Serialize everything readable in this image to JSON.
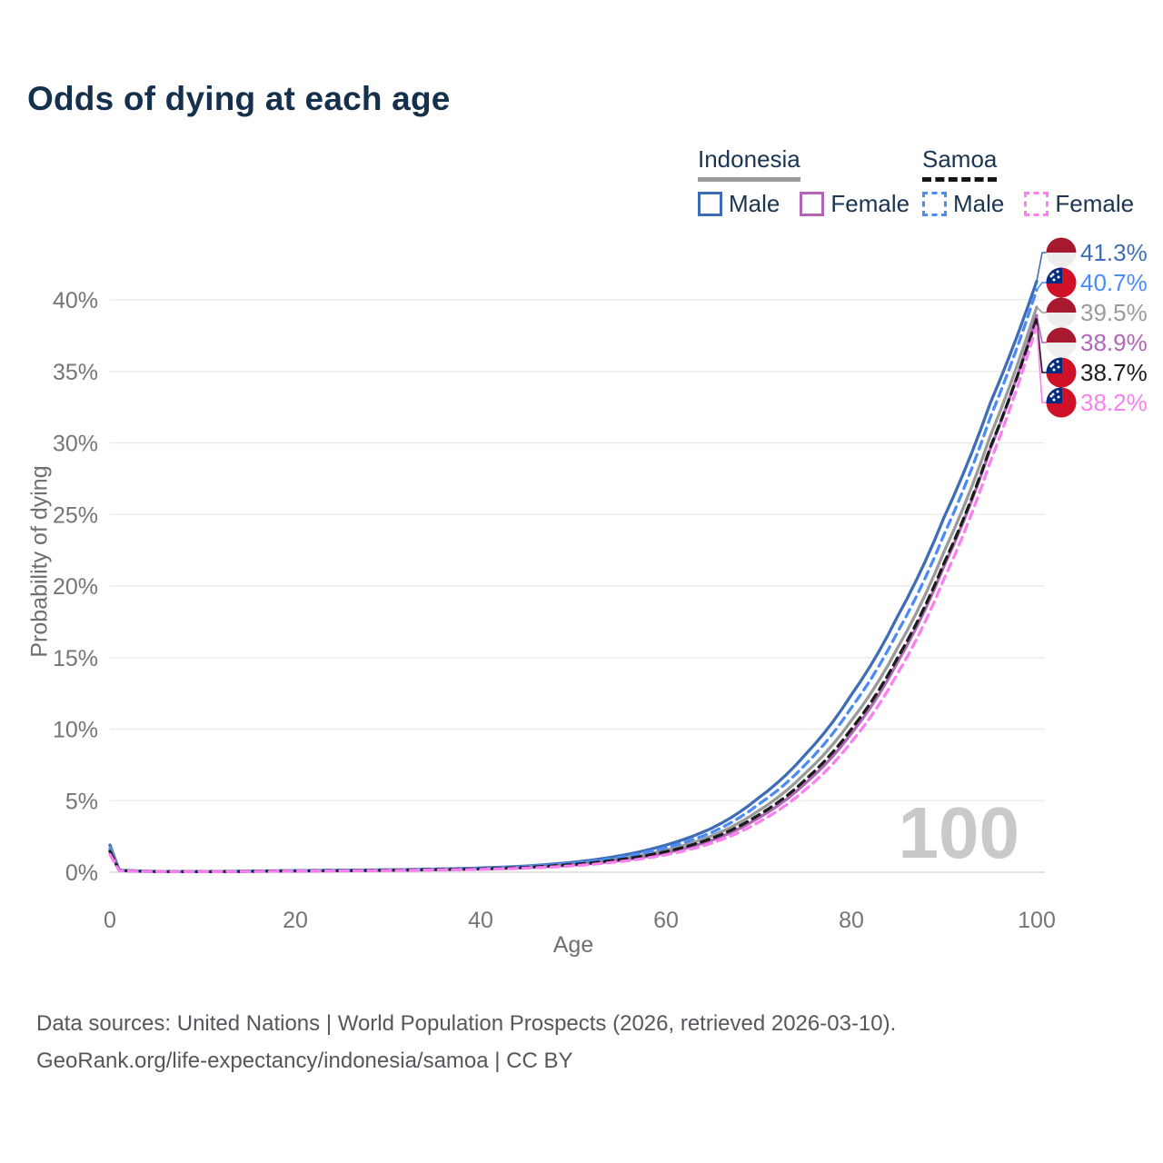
{
  "chart": {
    "title": "Odds of dying at each age"
  },
  "legend": {
    "groups": [
      {
        "label": "Indonesia",
        "line_style": "solid",
        "underline_color": "#9a9a9a",
        "items": [
          {
            "label": "Male",
            "color": "#3f6db5"
          },
          {
            "label": "Female",
            "color": "#b065b5"
          }
        ]
      },
      {
        "label": "Samoa",
        "line_style": "dashed",
        "underline_color": "#151515",
        "items": [
          {
            "label": "Male",
            "color": "#4b8bf4"
          },
          {
            "label": "Female",
            "color": "#fa7ff0"
          }
        ]
      }
    ]
  },
  "axes": {
    "y_title": "Probability of dying",
    "x_title": "Age",
    "y_tick_labels": [
      "0%",
      "5%",
      "10%",
      "15%",
      "20%",
      "25%",
      "30%",
      "35%",
      "40%"
    ],
    "x_tick_labels": [
      "0",
      "20",
      "40",
      "60",
      "80",
      "100"
    ]
  },
  "watermark_age": "100",
  "footer": {
    "line1": "Data sources: United Nations | World Population Prospects (2026, retrieved 2026-03-10).",
    "line2": "GeoRank.org/life-expectancy/indonesia/samoa | CC BY"
  },
  "flag_colors": {
    "indonesia_red": "#a6192e",
    "indonesia_white": "#ededed",
    "samoa_red": "#ce1126",
    "samoa_blue": "#012b7f",
    "samoa_star": "#ffffff"
  },
  "chart_data": {
    "type": "line",
    "title": "Odds of dying at each age",
    "xlabel": "Age",
    "ylabel": "Probability of dying",
    "xlim": [
      0,
      100
    ],
    "ylim_percent": [
      0,
      43
    ],
    "x_ticks": [
      0,
      20,
      40,
      60,
      80,
      100
    ],
    "y_ticks_percent": [
      0,
      5,
      10,
      15,
      20,
      25,
      30,
      35,
      40
    ],
    "grid": "horizontal",
    "legend_position": "top-right",
    "hover_age": 100,
    "ages": [
      0,
      1,
      5,
      10,
      15,
      20,
      25,
      30,
      35,
      40,
      45,
      50,
      55,
      60,
      65,
      70,
      75,
      80,
      85,
      90,
      95,
      100
    ],
    "series": [
      {
        "name": "Indonesia Male",
        "country": "Indonesia",
        "sex": "Male",
        "color": "#3f6db5",
        "dash": false,
        "end_label": "41.3%",
        "end_value": 41.3,
        "values": [
          1.9,
          0.15,
          0.06,
          0.05,
          0.08,
          0.12,
          0.14,
          0.17,
          0.22,
          0.3,
          0.44,
          0.7,
          1.15,
          1.9,
          3.1,
          5.2,
          8.2,
          12.4,
          17.9,
          24.8,
          32.8,
          41.3
        ]
      },
      {
        "name": "Indonesia",
        "country": "Indonesia",
        "sex": "All",
        "color": "#9a9a9a",
        "dash": false,
        "end_label": "39.5%",
        "end_value": 39.5,
        "values": [
          1.7,
          0.14,
          0.055,
          0.045,
          0.07,
          0.1,
          0.12,
          0.15,
          0.19,
          0.25,
          0.37,
          0.58,
          0.95,
          1.55,
          2.55,
          4.3,
          6.9,
          10.6,
          15.7,
          22.4,
          30.5,
          39.5
        ]
      },
      {
        "name": "Indonesia Female",
        "country": "Indonesia",
        "sex": "Female",
        "color": "#b065b5",
        "dash": false,
        "end_label": "38.9%",
        "end_value": 38.9,
        "values": [
          1.5,
          0.12,
          0.05,
          0.04,
          0.06,
          0.085,
          0.1,
          0.13,
          0.165,
          0.22,
          0.32,
          0.5,
          0.82,
          1.35,
          2.25,
          3.8,
          6.2,
          9.7,
          14.7,
          21.4,
          29.6,
          38.9
        ]
      },
      {
        "name": "Samoa Male",
        "country": "Samoa",
        "sex": "Male",
        "color": "#4b8bf4",
        "dash": true,
        "end_label": "40.7%",
        "end_value": 40.7,
        "values": [
          1.6,
          0.13,
          0.05,
          0.045,
          0.07,
          0.11,
          0.13,
          0.16,
          0.2,
          0.27,
          0.4,
          0.63,
          1.04,
          1.72,
          2.8,
          4.75,
          7.5,
          11.5,
          16.8,
          23.6,
          31.8,
          40.7
        ]
      },
      {
        "name": "Samoa",
        "country": "Samoa",
        "sex": "All",
        "color": "#1c1c1c",
        "dash": true,
        "end_label": "38.7%",
        "end_value": 38.7,
        "values": [
          1.45,
          0.12,
          0.05,
          0.04,
          0.065,
          0.095,
          0.11,
          0.14,
          0.18,
          0.235,
          0.345,
          0.54,
          0.88,
          1.44,
          2.38,
          4.0,
          6.45,
          10.0,
          15.0,
          21.6,
          29.7,
          38.7
        ]
      },
      {
        "name": "Samoa Female",
        "country": "Samoa",
        "sex": "Female",
        "color": "#fa7ff0",
        "dash": true,
        "end_label": "38.2%",
        "end_value": 38.2,
        "values": [
          1.25,
          0.1,
          0.045,
          0.035,
          0.055,
          0.08,
          0.095,
          0.12,
          0.15,
          0.2,
          0.29,
          0.45,
          0.74,
          1.22,
          2.05,
          3.5,
          5.75,
          9.1,
          13.9,
          20.5,
          28.7,
          38.2
        ]
      }
    ]
  }
}
